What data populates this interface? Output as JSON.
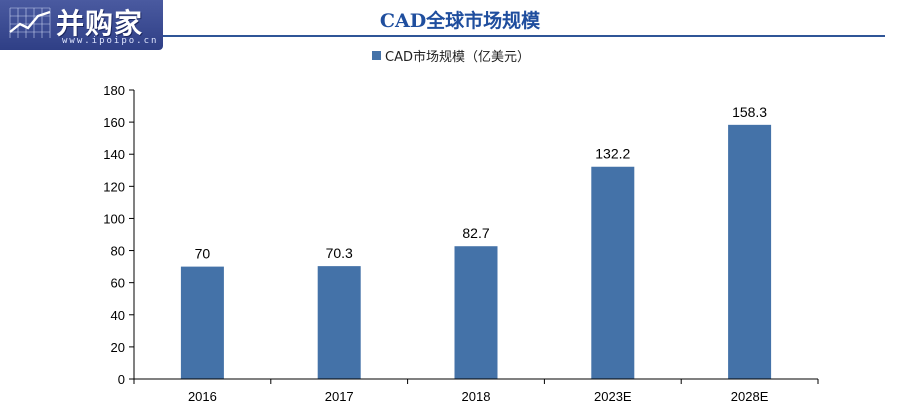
{
  "logo": {
    "text": "并购家",
    "url": "www.ipoipo.cn"
  },
  "chart_data": {
    "type": "bar",
    "title": "CAD全球市场规模",
    "legend": "CAD市场规模（亿美元）",
    "legend_position": "top",
    "categories": [
      "2016",
      "2017",
      "2018",
      "2023E",
      "2028E"
    ],
    "series": [
      {
        "name": "CAD市场规模（亿美元）",
        "values": [
          70,
          70.3,
          82.7,
          132.2,
          158.3
        ]
      }
    ],
    "data_labels": [
      "70",
      "70.3",
      "82.7",
      "132.2",
      "158.3"
    ],
    "yticks": [
      "0",
      "20",
      "40",
      "60",
      "80",
      "100",
      "120",
      "140",
      "160",
      "180"
    ],
    "ylim": [
      0,
      180
    ],
    "grid": false,
    "bar_color": "#4472a8"
  }
}
